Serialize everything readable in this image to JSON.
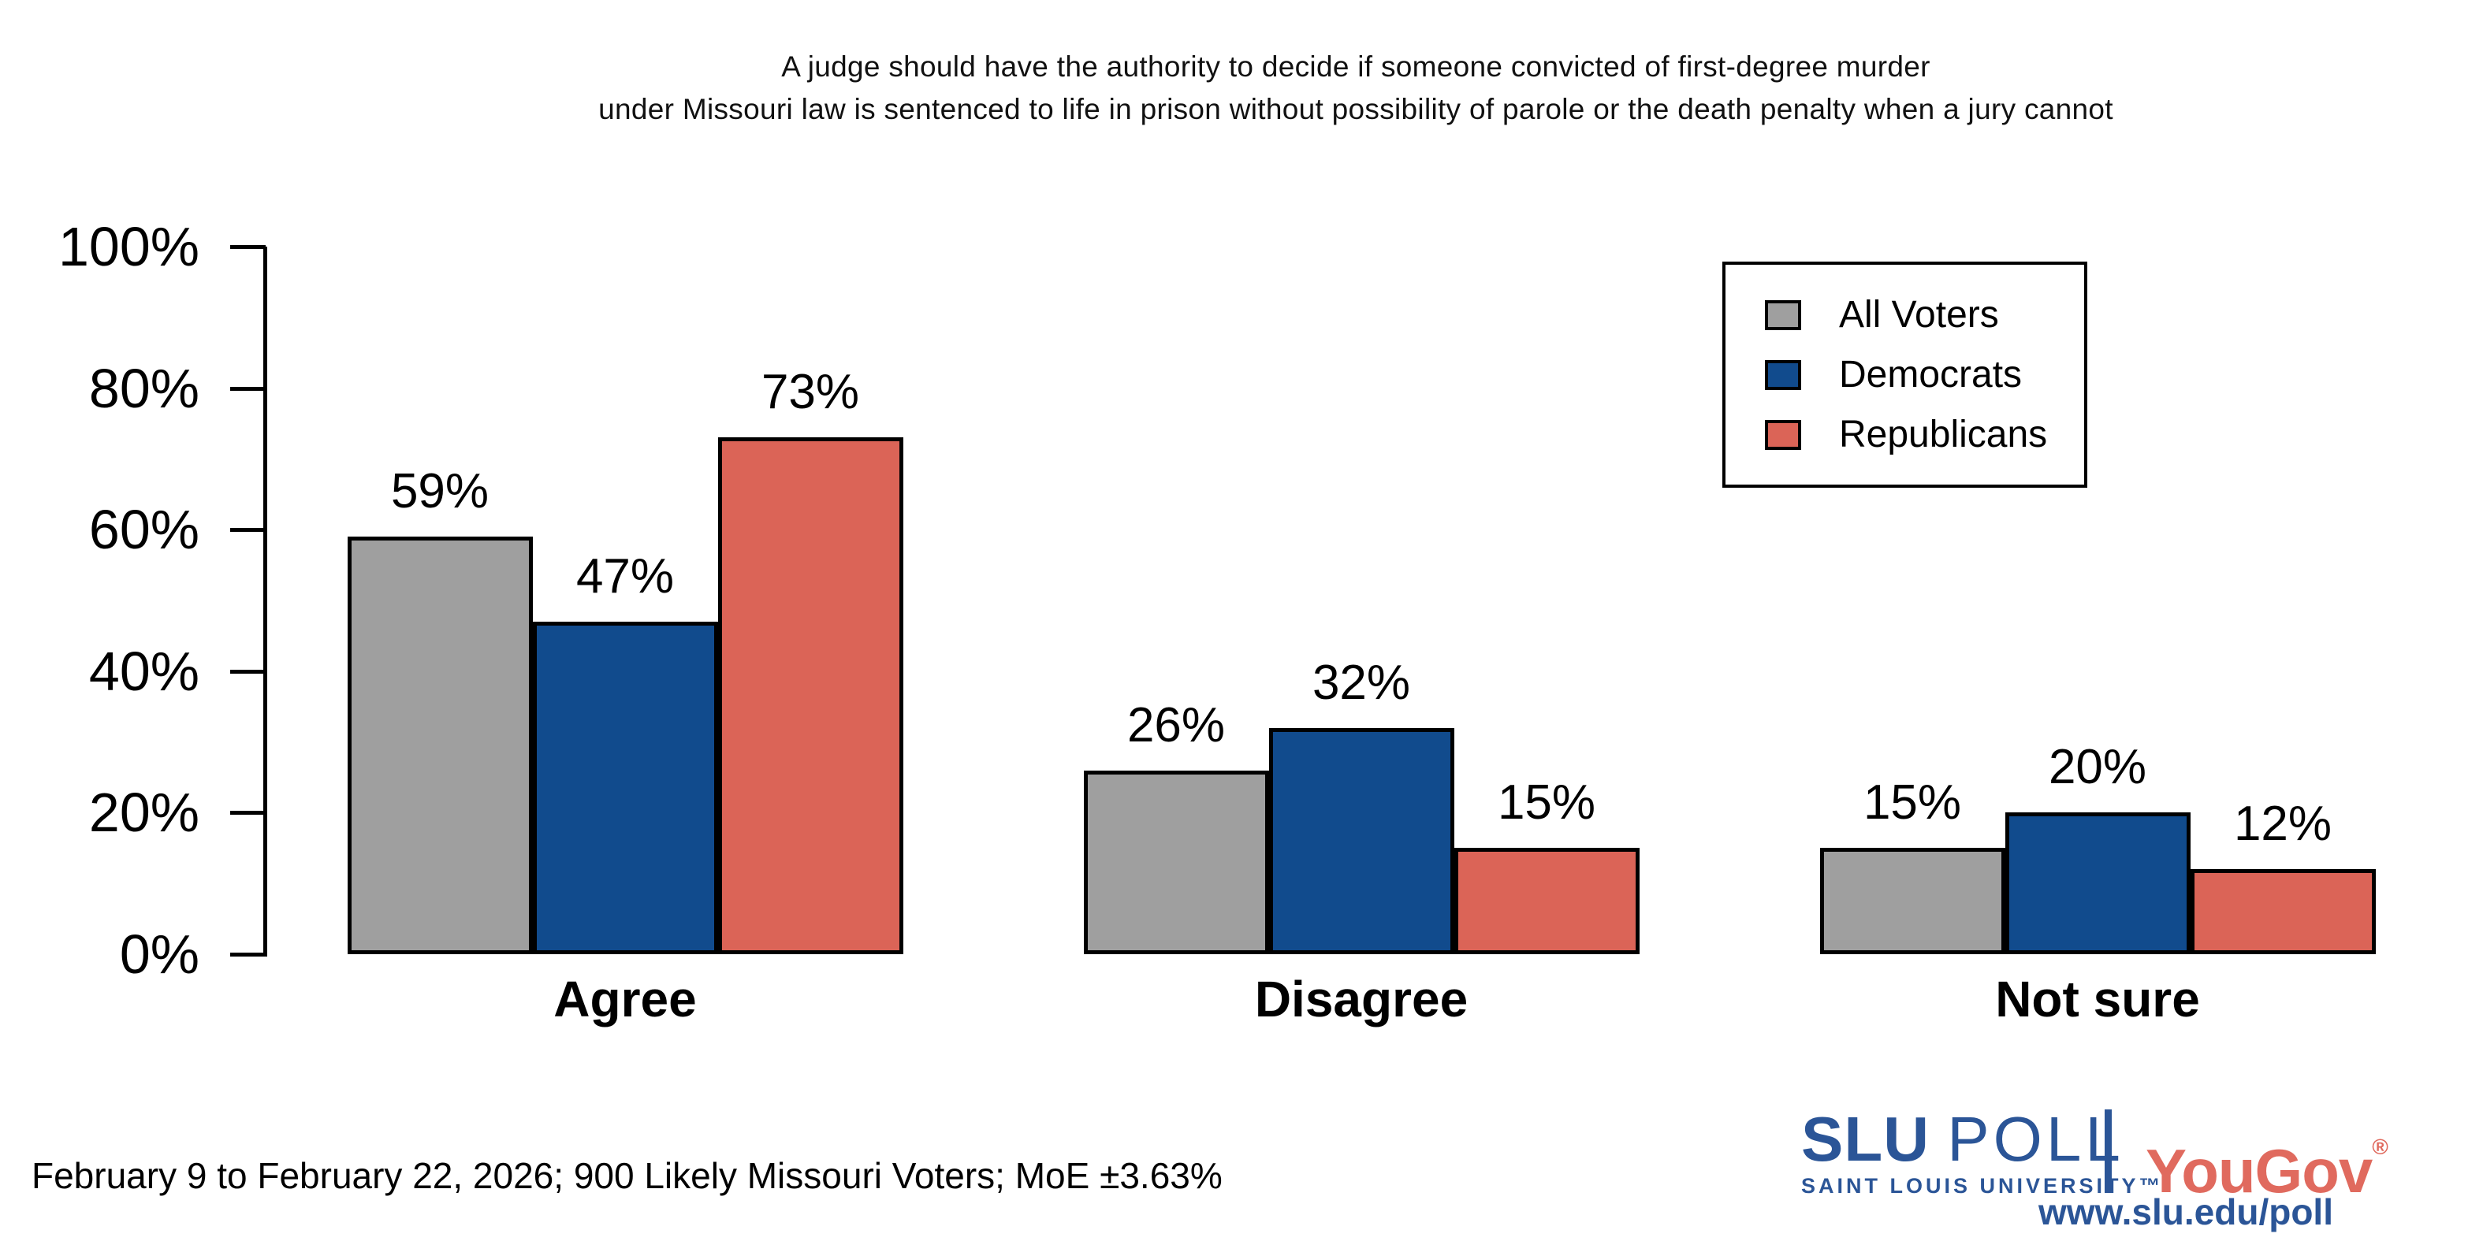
{
  "title": {
    "line1": "A judge should have the authority to decide if someone convicted of first-degree murder",
    "line2": "under Missouri law is sentenced to life in prison without possibility of parole or the death penalty when a jury cannot"
  },
  "chart_data": {
    "type": "bar",
    "title": "A judge should have the authority to decide if someone convicted of first-degree murder under Missouri law is sentenced to life in prison without possibility of parole or the death penalty when a jury cannot",
    "categories": [
      "Agree",
      "Disagree",
      "Not sure"
    ],
    "series": [
      {
        "name": "All Voters",
        "color": "#9f9f9f",
        "values": [
          59,
          26,
          15
        ]
      },
      {
        "name": "Democrats",
        "color": "#114b8d",
        "values": [
          47,
          32,
          20
        ]
      },
      {
        "name": "Republicans",
        "color": "#db6457",
        "values": [
          73,
          15,
          12
        ]
      }
    ],
    "value_suffix": "%",
    "y_ticks": [
      0,
      20,
      40,
      60,
      80,
      100
    ],
    "ylim": [
      0,
      100
    ],
    "xlabel": "",
    "ylabel": "",
    "grid": false,
    "bar_labels": true,
    "legend_position": "top-right"
  },
  "footer": {
    "text": "February 9 to February 22, 2026; 900 Likely Missouri Voters; MoE ±3.63%"
  },
  "branding": {
    "slu": "SLU",
    "poll": "POLL",
    "slu_subtitle": "SAINT LOUIS UNIVERSITY",
    "slu_tm": "™",
    "yougov": "YouGov",
    "yougov_reg": "®",
    "url": "www.slu.edu/poll",
    "slu_blue": "#2b5597",
    "yougov_red": "#e06a5e"
  }
}
